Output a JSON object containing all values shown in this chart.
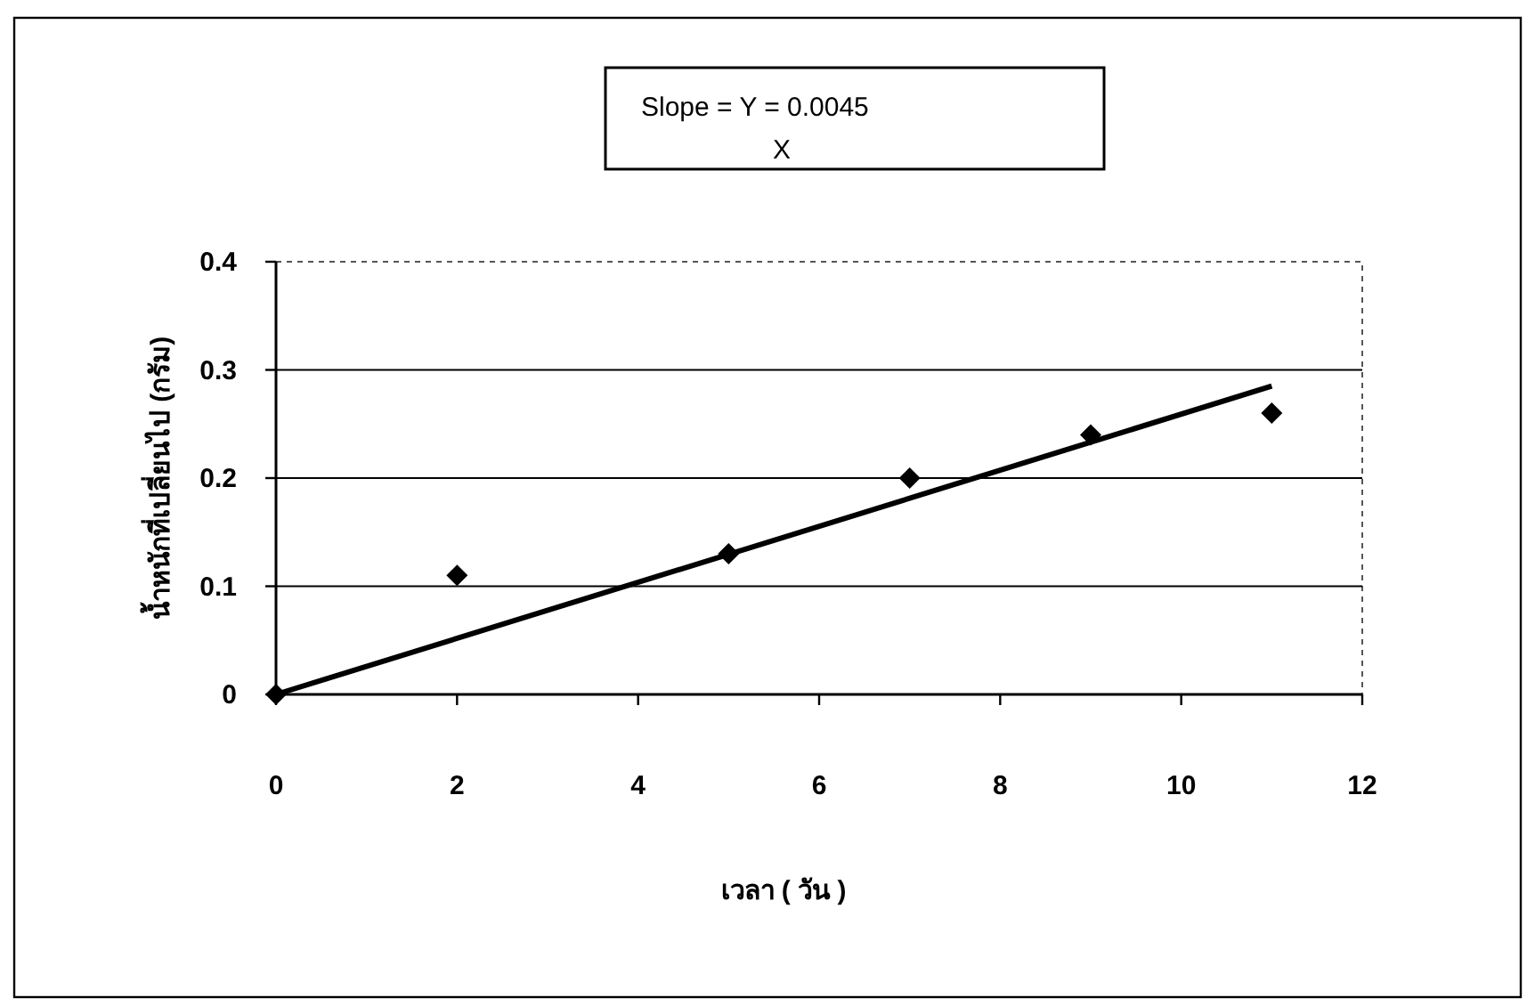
{
  "chart_data": {
    "type": "scatter",
    "xlabel": "เวลา ( วัน )",
    "ylabel": "น้ำหนักที่เปลี่ยนไป (กรัม)",
    "annotations": [
      "Slope = Y = 0.0045",
      "X"
    ],
    "series": [
      {
        "color": "#000000",
        "marker": "diamond",
        "x": [
          0,
          2,
          5,
          7,
          9,
          11
        ],
        "values": [
          0,
          0.11,
          0.13,
          0.2,
          0.24,
          0.26
        ]
      },
      {
        "type": "line",
        "color": "#000000",
        "marker": "none",
        "x": [
          0,
          11
        ],
        "values": [
          0,
          0.285
        ]
      }
    ],
    "xlim": [
      0,
      12
    ],
    "xticks": [
      0,
      2,
      4,
      6,
      8,
      10,
      12
    ],
    "ylim": [
      0,
      0.4
    ],
    "yticks": [
      0,
      0.1,
      0.2,
      0.3,
      0.4
    ],
    "grid": "y"
  }
}
